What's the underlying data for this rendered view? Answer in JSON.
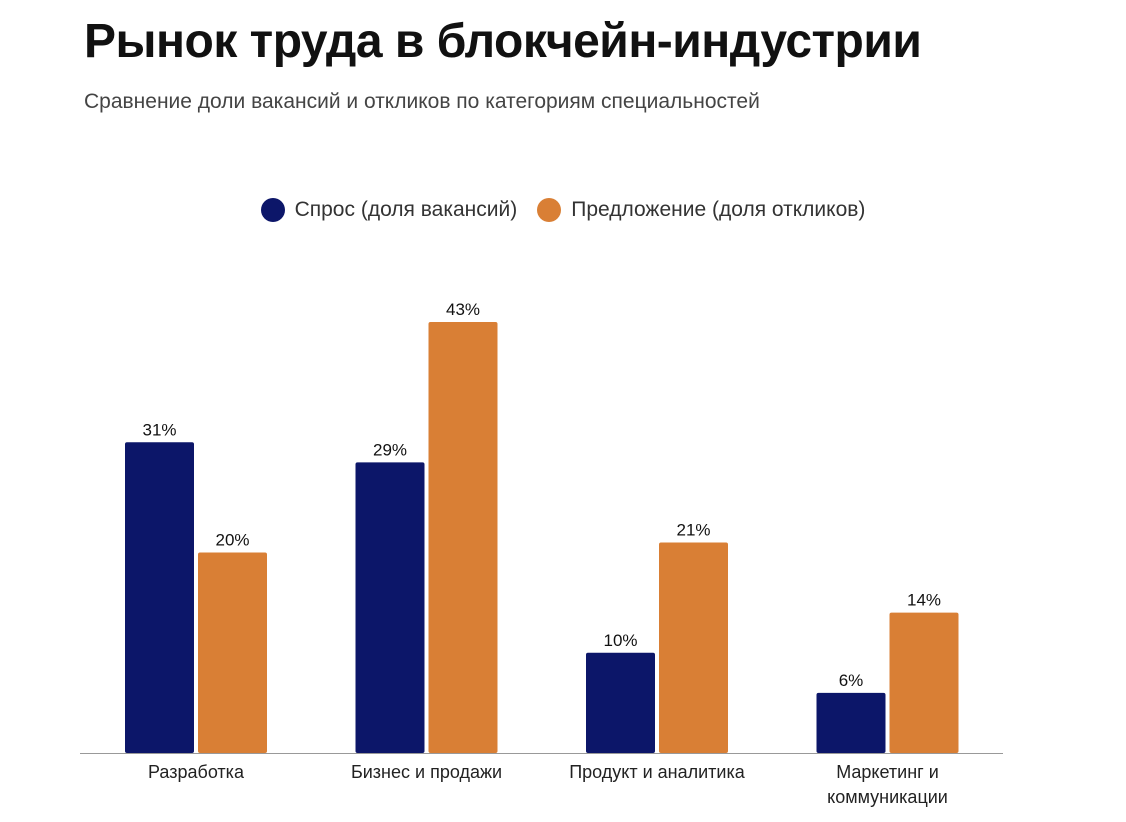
{
  "title": "Рынок труда в блокчейн-индустрии",
  "subtitle": "Сравнение доли вакансий и откликов по категориям специальностей",
  "colors": {
    "demand": "#0c1669",
    "supply": "#d97f35",
    "axis": "#999999"
  },
  "legend": [
    {
      "label": "Спрос (доля вакансий)",
      "color": "#0c1669"
    },
    {
      "label": "Предложение (доля откликов)",
      "color": "#d97f35"
    }
  ],
  "chart_data": {
    "type": "bar",
    "title": "Рынок труда в блокчейн-индустрии",
    "subtitle": "Сравнение доли вакансий и откликов по категориям специальностей",
    "categories": [
      "Разработка",
      "Бизнес и продажи",
      "Продукт и аналитика",
      "Маркетинг и коммуникации"
    ],
    "category_lines": [
      [
        "Разработка"
      ],
      [
        "Бизнес и продажи"
      ],
      [
        "Продукт и аналитика"
      ],
      [
        "Маркетинг и",
        "коммуникации"
      ]
    ],
    "series": [
      {
        "name": "Спрос (доля вакансий)",
        "values": [
          31,
          29,
          10,
          6
        ],
        "labels": [
          "31%",
          "29%",
          "10%",
          "6%"
        ],
        "color": "#0c1669"
      },
      {
        "name": "Предложение (доля откликов)",
        "values": [
          20,
          43,
          21,
          14
        ],
        "labels": [
          "20%",
          "43%",
          "21%",
          "14%"
        ],
        "color": "#d97f35"
      }
    ],
    "xlabel": "",
    "ylabel": "",
    "unit": "%",
    "ylim": [
      0,
      43
    ],
    "grid": false,
    "legend_position": "top-center"
  }
}
